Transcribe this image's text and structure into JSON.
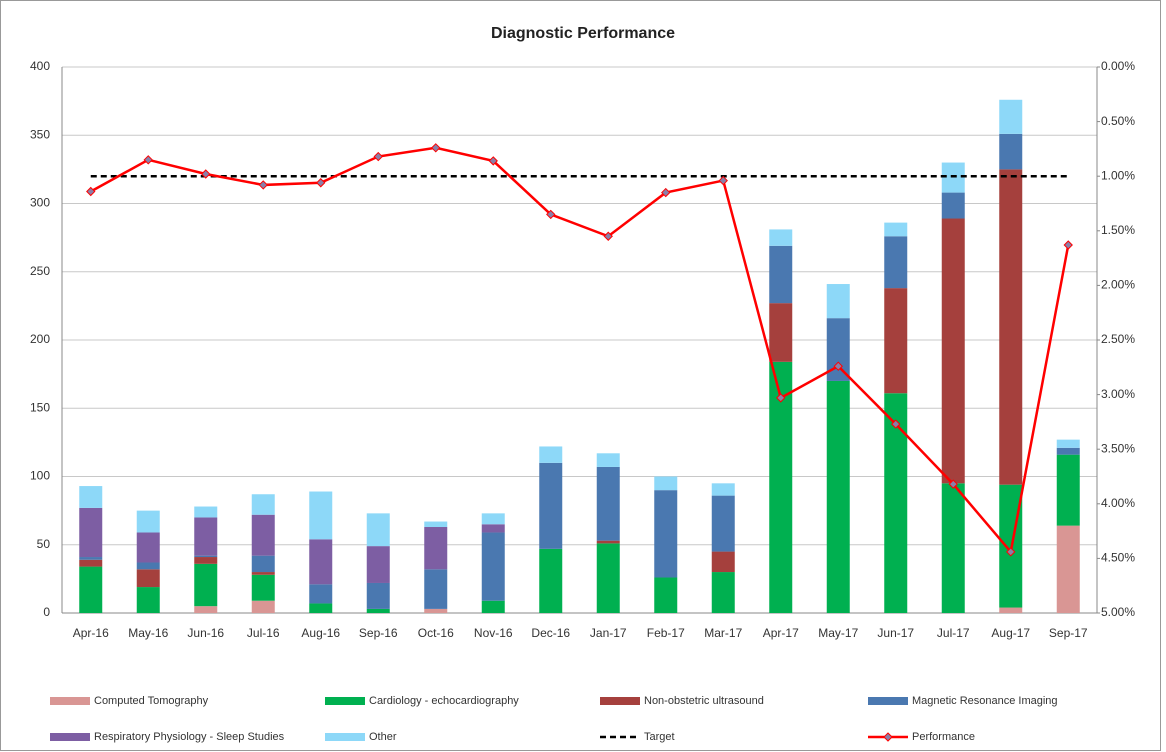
{
  "chart_data": {
    "type": "bar",
    "stacked": true,
    "title": "Diagnostic Performance",
    "categories": [
      "Apr-16",
      "May-16",
      "Jun-16",
      "Jul-16",
      "Aug-16",
      "Sep-16",
      "Oct-16",
      "Nov-16",
      "Dec-16",
      "Jan-17",
      "Feb-17",
      "Mar-17",
      "Apr-17",
      "May-17",
      "Jun-17",
      "Jul-17",
      "Aug-17",
      "Sep-17"
    ],
    "series": [
      {
        "name": "Computed Tomography",
        "color": "#d99694",
        "values": [
          0,
          0,
          5,
          9,
          0,
          0,
          3,
          0,
          0,
          0,
          0,
          0,
          0,
          0,
          0,
          0,
          4,
          64
        ]
      },
      {
        "name": "Cardiology - echocardiography",
        "color": "#00b050",
        "values": [
          34,
          19,
          31,
          19,
          7,
          3,
          0,
          9,
          47,
          51,
          26,
          30,
          184,
          170,
          161,
          95,
          90,
          52
        ]
      },
      {
        "name": "Non-obstetric ultrasound",
        "color": "#a5403d",
        "values": [
          5,
          13,
          5,
          2,
          0,
          0,
          0,
          0,
          0,
          2,
          0,
          15,
          43,
          0,
          77,
          194,
          231,
          0
        ]
      },
      {
        "name": "Magnetic Resonance Imaging",
        "color": "#4a78b0",
        "values": [
          2,
          5,
          1,
          12,
          14,
          19,
          29,
          50,
          63,
          54,
          64,
          41,
          42,
          46,
          38,
          19,
          26,
          5
        ]
      },
      {
        "name": "Respiratory Physiology - Sleep Studies",
        "color": "#7d5ea3",
        "values": [
          36,
          22,
          28,
          30,
          33,
          27,
          31,
          6,
          0,
          0,
          0,
          0,
          0,
          0,
          0,
          0,
          0,
          0
        ]
      },
      {
        "name": "Other",
        "color": "#8dd8f8",
        "values": [
          16,
          16,
          8,
          15,
          35,
          24,
          4,
          8,
          12,
          10,
          10,
          9,
          12,
          25,
          10,
          22,
          25,
          6
        ]
      },
      {
        "name": "Target",
        "type": "line",
        "axis": "y2",
        "color": "#000000",
        "dashed": true,
        "values": [
          1,
          1,
          1,
          1,
          1,
          1,
          1,
          1,
          1,
          1,
          1,
          1,
          1,
          1,
          1,
          1,
          1,
          1
        ]
      },
      {
        "name": "Performance",
        "type": "line",
        "axis": "y2",
        "color": "#ff0000",
        "markers": true,
        "values": [
          1.14,
          0.85,
          0.98,
          1.08,
          1.06,
          0.82,
          0.74,
          0.86,
          1.35,
          1.55,
          1.15,
          1.04,
          3.03,
          2.74,
          3.27,
          3.82,
          4.44,
          1.63
        ]
      }
    ],
    "ylim": [
      0,
      400
    ],
    "yticks": [
      0,
      50,
      100,
      150,
      200,
      250,
      300,
      350,
      400
    ],
    "y2lim": [
      0,
      5
    ],
    "y2_reversed": true,
    "y2ticks": [
      {
        "value": 0,
        "label": "0.00%"
      },
      {
        "value": 0.5,
        "label": "0.50%"
      },
      {
        "value": 1,
        "label": "1.00%"
      },
      {
        "value": 1.5,
        "label": "1.50%"
      },
      {
        "value": 2,
        "label": "2.00%"
      },
      {
        "value": 2.5,
        "label": "2.50%"
      },
      {
        "value": 3,
        "label": "3.00%"
      },
      {
        "value": 3.5,
        "label": "3.50%"
      },
      {
        "value": 4,
        "label": "4.00%"
      },
      {
        "value": 4.5,
        "label": "4.50%"
      },
      {
        "value": 5,
        "label": "5.00%"
      }
    ],
    "grid": true,
    "legend": "bottom"
  }
}
